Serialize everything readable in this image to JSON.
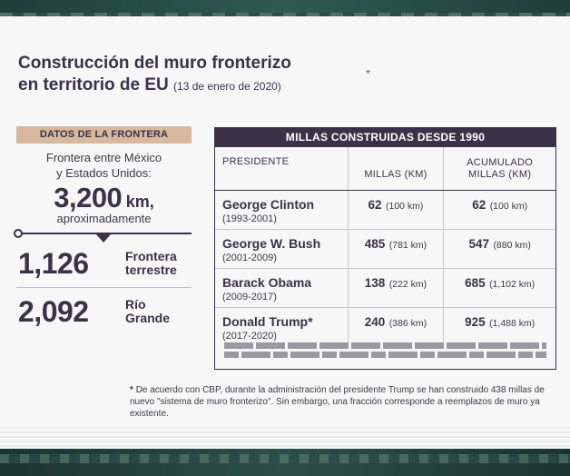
{
  "title": {
    "line1": "Construcción del muro fronterizo",
    "line2": "en territorio de EU",
    "date": "(13 de enero de 2020)"
  },
  "left_panel": {
    "header": "Datos de la frontera",
    "desc_line1": "Frontera entre México",
    "desc_line2": "y Estados Unidos:",
    "total_value": "3,200",
    "total_unit": "km,",
    "approx": "aproximadamente",
    "stats": [
      {
        "value": "1,126",
        "label_line1": "Frontera",
        "label_line2": "terrestre"
      },
      {
        "value": "2,092",
        "label_line1": "Río",
        "label_line2": "Grande"
      }
    ]
  },
  "table": {
    "title": "Millas construidas desde 1990",
    "headers": {
      "president": "Presidente",
      "miles": "Millas (km)",
      "accum_line1": "Acumulado",
      "accum_line2": "millas (km)"
    },
    "rows": [
      {
        "name": "George Clinton",
        "years": "(1993-2001)",
        "miles": "62",
        "miles_km": "(100 km)",
        "accum": "62",
        "accum_km": "(100 km)"
      },
      {
        "name": "George W. Bush",
        "years": "(2001-2009)",
        "miles": "485",
        "miles_km": "(781 km)",
        "accum": "547",
        "accum_km": "(880 km)"
      },
      {
        "name": "Barack Obama",
        "years": "(2009-2017)",
        "miles": "138",
        "miles_km": "(222 km)",
        "accum": "685",
        "accum_km": "(1,102 km)"
      },
      {
        "name": "Donald Trump*",
        "years": "(2017-2020)",
        "miles": "240",
        "miles_km": "(386 km)",
        "accum": "925",
        "accum_km": "(1,488 km)"
      }
    ]
  },
  "footnote": {
    "star": "*",
    "text": "De acuerdo con CBP, durante la administración del presidente Trump se han construido 438 millas de nuevo \"sistema de muro fronterizo\". Sin embargo, una fracción corresponde a reemplazos de muro ya existente."
  },
  "cursor_glyph": "⌖"
}
